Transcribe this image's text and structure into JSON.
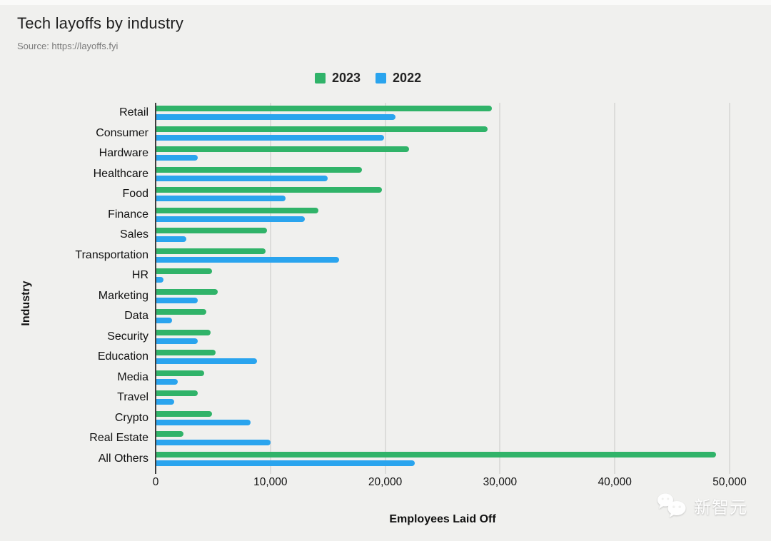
{
  "header": {
    "title": "Tech layoffs by industry",
    "source": "Source: https://layoffs.fyi"
  },
  "legend": [
    {
      "label": "2023",
      "color": "#30b369"
    },
    {
      "label": "2022",
      "color": "#2aa4ee"
    }
  ],
  "chart_data": {
    "type": "bar",
    "orientation": "horizontal",
    "title": "Tech layoffs by industry",
    "xlabel": "Employees Laid Off",
    "ylabel": "Industry",
    "xlim": [
      0,
      50000
    ],
    "x_ticks": [
      0,
      10000,
      20000,
      30000,
      40000,
      50000
    ],
    "x_tick_labels": [
      "0",
      "10,000",
      "20,000",
      "30,000",
      "40,000",
      "50,000"
    ],
    "grid": true,
    "legend_position": "top-center",
    "categories": [
      "Retail",
      "Consumer",
      "Hardware",
      "Healthcare",
      "Food",
      "Finance",
      "Sales",
      "Transportation",
      "HR",
      "Marketing",
      "Data",
      "Security",
      "Education",
      "Media",
      "Travel",
      "Crypto",
      "Real Estate",
      "All Others"
    ],
    "series": [
      {
        "name": "2023",
        "color": "#30b369",
        "values": [
          29300,
          28900,
          22100,
          18000,
          19700,
          14200,
          9700,
          9600,
          4900,
          5400,
          4400,
          4800,
          5200,
          4200,
          3700,
          4900,
          2400,
          48800
        ]
      },
      {
        "name": "2022",
        "color": "#2aa4ee",
        "values": [
          20900,
          19900,
          3700,
          15000,
          11300,
          13000,
          2700,
          16000,
          700,
          3700,
          1400,
          3700,
          8800,
          1900,
          1600,
          8300,
          10000,
          22600
        ]
      }
    ]
  },
  "watermark": {
    "icon": "wechat-icon",
    "text": "新智元"
  }
}
